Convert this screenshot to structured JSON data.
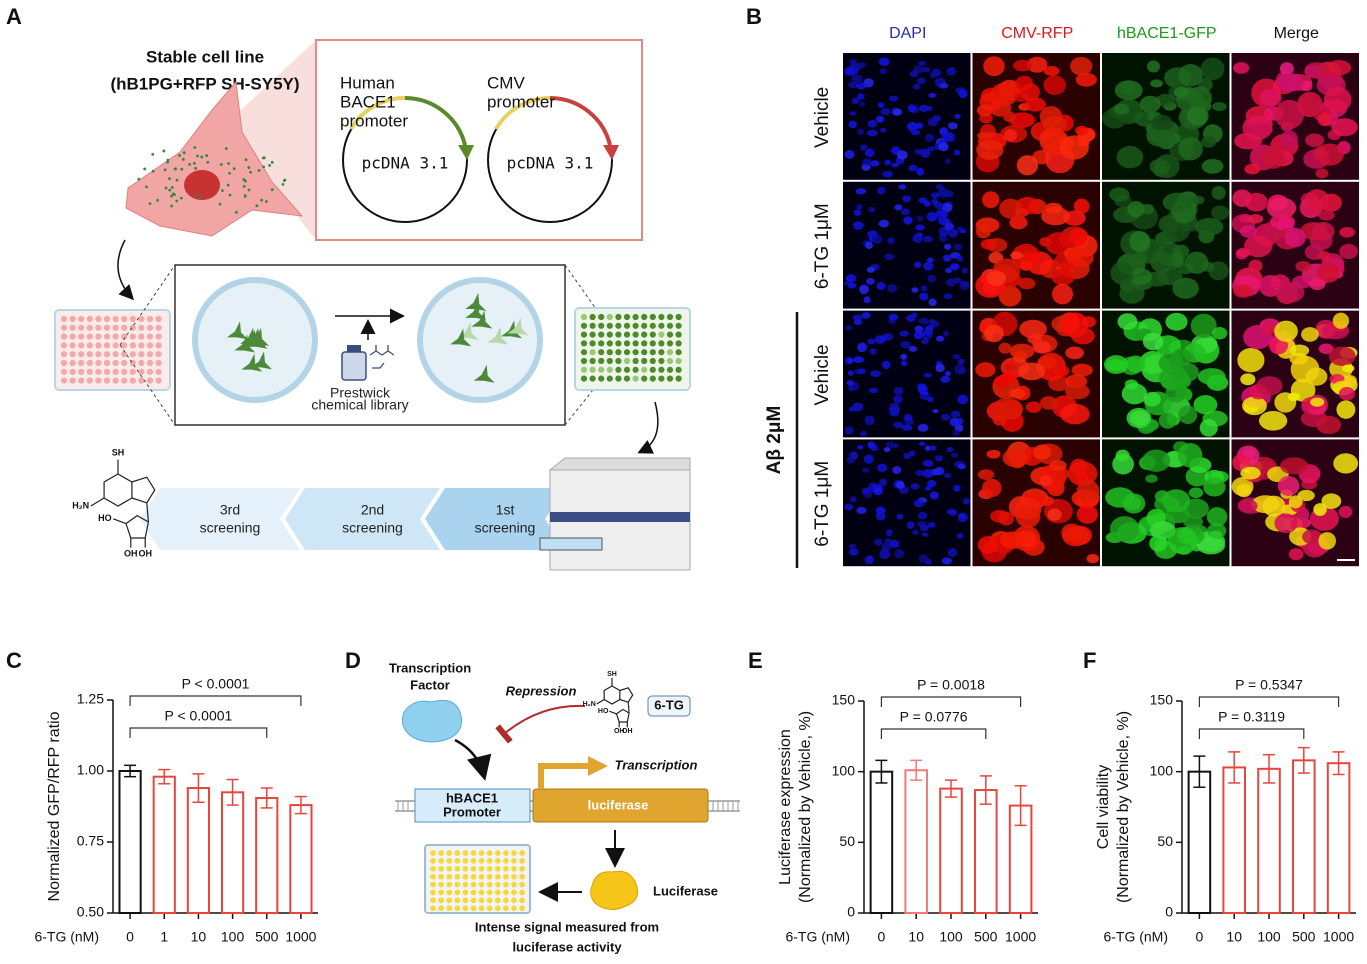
{
  "panel_labels": [
    "A",
    "B",
    "C",
    "D",
    "E",
    "F"
  ],
  "compound_labels": [
    "SH",
    "H₂N",
    "HO",
    "OH",
    "OH"
  ],
  "panel_a": {
    "cell_line": [
      "Stable cell line",
      "(hB1PG+RFP SH-SY5Y)"
    ],
    "plasmids": [
      {
        "promoter": [
          "Human",
          "BACE1",
          "promoter"
        ],
        "vector": "pcDNA 3.1"
      },
      {
        "promoter": [
          "CMV",
          "promoter"
        ],
        "vector": "pcDNA 3.1"
      }
    ],
    "library": [
      "Prestwick",
      "chemical library"
    ],
    "screenings": [
      [
        "3rd",
        "screening"
      ],
      [
        "2nd",
        "screening"
      ],
      [
        "1st",
        "screening"
      ]
    ]
  },
  "panel_b": {
    "columns": [
      "DAPI",
      "CMV-RFP",
      "hBACE1-GFP",
      "Merge"
    ],
    "rows": [
      "Vehicle",
      "6-TG 1μM",
      "Vehicle",
      "6-TG 1μM"
    ],
    "group": "Aβ 2μM"
  },
  "panel_d": {
    "factor": [
      "Transcription",
      "Factor"
    ],
    "repression": "Repression",
    "drug": "6-TG",
    "transcription": "Transcription",
    "promoter": [
      "hBACE1",
      "Promoter"
    ],
    "gene": "luciferase",
    "enzyme": "Luciferase",
    "readout": [
      "Intense signal measured from",
      "luciferase activity"
    ]
  },
  "chart_data": [
    {
      "type": "bar",
      "categories": [
        "0",
        "1",
        "10",
        "100",
        "500",
        "1000"
      ],
      "values": [
        1.0,
        0.98,
        0.94,
        0.925,
        0.905,
        0.88
      ],
      "errors": [
        0.02,
        0.025,
        0.05,
        0.045,
        0.035,
        0.03
      ],
      "colors": [
        "#111111",
        "#e8453c",
        "#e8453c",
        "#e8453c",
        "#e8453c",
        "#e8453c"
      ],
      "ylim": [
        0.5,
        1.25
      ],
      "yticks": [
        {
          "value": 0.5,
          "label": "0.50"
        },
        0.75,
        {
          "value": 1.0,
          "label": "1.00"
        },
        1.25
      ],
      "ylabel": [
        "Normalized GFP/RFP ratio"
      ],
      "xlabel": "6-TG (nM)",
      "annotations": [
        {
          "text": "P < 0.0001"
        },
        {
          "text": "P < 0.0001"
        }
      ]
    },
    {
      "type": "bar",
      "categories": [
        "0",
        "10",
        "100",
        "500",
        "1000"
      ],
      "values": [
        100,
        101,
        88,
        87,
        76
      ],
      "errors": [
        8,
        7,
        6,
        10,
        14
      ],
      "colors": [
        "#111111",
        "#f07a7a",
        "#e8453c",
        "#e8453c",
        "#e8453c"
      ],
      "ylim": [
        0,
        150
      ],
      "yticks": [
        0,
        50,
        100,
        150
      ],
      "ylabel": [
        "Luciferase expression",
        "(Normalized by Vehicle, %)"
      ],
      "xlabel": "6-TG (nM)",
      "annotations": [
        {
          "text": "P = 0.0018"
        },
        {
          "text": "P = 0.0776"
        }
      ]
    },
    {
      "type": "bar",
      "categories": [
        "0",
        "10",
        "100",
        "500",
        "1000"
      ],
      "values": [
        100,
        103,
        102,
        108,
        106
      ],
      "errors": [
        11,
        11,
        10,
        9,
        8
      ],
      "colors": [
        "#111111",
        "#e8453c",
        "#e8453c",
        "#e8453c",
        "#e8453c"
      ],
      "ylim": [
        0,
        150
      ],
      "yticks": [
        0,
        50,
        100,
        150
      ],
      "ylabel": [
        "Cell viability",
        "(Normalized by Vehicle, %)"
      ],
      "xlabel": "6-TG (nM)",
      "annotations": [
        {
          "text": "P = 0.5347"
        },
        {
          "text": "P = 0.3119"
        }
      ]
    }
  ]
}
